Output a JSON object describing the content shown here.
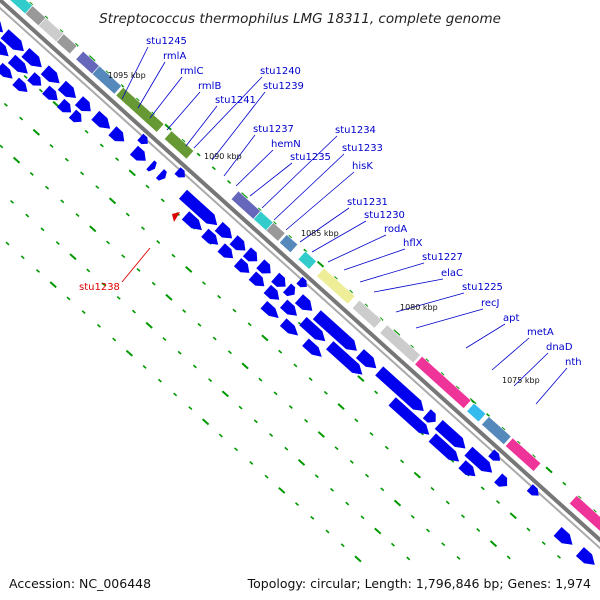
{
  "title": "Streptococcus thermophilus LMG 18311, complete genome",
  "accession": "Accession: NC_006448",
  "summary": "Topology: circular; Length: 1,796,846 bp; Genes: 1,974",
  "kbp_labels": [
    "1095 kbp",
    "1090 kbp",
    "1085 kbp",
    "1080 kbp",
    "1075 kbp"
  ],
  "colors": {
    "cds_arrow": "#0000ee",
    "label_blue": "#0000cc",
    "label_red": "#dd0000",
    "tick": "#009900",
    "backbone": "#888888",
    "cat_cyan": "#33cccc",
    "cat_gray": "#999999",
    "cat_light": "#cccccc",
    "cat_purple": "#6666bb",
    "cat_steel": "#5588bb",
    "cat_olive": "#669933",
    "cat_yellow": "#eeee99",
    "cat_pink": "#ee3399",
    "cat_skyblue": "#33bbee"
  },
  "gene_labels": [
    {
      "text": "stu1245",
      "color": "blue"
    },
    {
      "text": "rmlA",
      "color": "blue"
    },
    {
      "text": "rmlC",
      "color": "blue"
    },
    {
      "text": "rmlB",
      "color": "blue"
    },
    {
      "text": "stu1241",
      "color": "blue"
    },
    {
      "text": "stu1240",
      "color": "blue"
    },
    {
      "text": "stu1239",
      "color": "blue"
    },
    {
      "text": "stu1237",
      "color": "blue"
    },
    {
      "text": "hemN",
      "color": "blue"
    },
    {
      "text": "stu1235",
      "color": "blue"
    },
    {
      "text": "stu1234",
      "color": "blue"
    },
    {
      "text": "stu1233",
      "color": "blue"
    },
    {
      "text": "hisK",
      "color": "blue"
    },
    {
      "text": "stu1231",
      "color": "blue"
    },
    {
      "text": "stu1230",
      "color": "blue"
    },
    {
      "text": "rodA",
      "color": "blue"
    },
    {
      "text": "hflX",
      "color": "blue"
    },
    {
      "text": "stu1227",
      "color": "blue"
    },
    {
      "text": "elaC",
      "color": "blue"
    },
    {
      "text": "stu1225",
      "color": "blue"
    },
    {
      "text": "recJ",
      "color": "blue"
    },
    {
      "text": "apt",
      "color": "blue"
    },
    {
      "text": "metA",
      "color": "blue"
    },
    {
      "text": "dnaD",
      "color": "blue"
    },
    {
      "text": "nth",
      "color": "blue"
    },
    {
      "text": "stu1238",
      "color": "red"
    }
  ]
}
